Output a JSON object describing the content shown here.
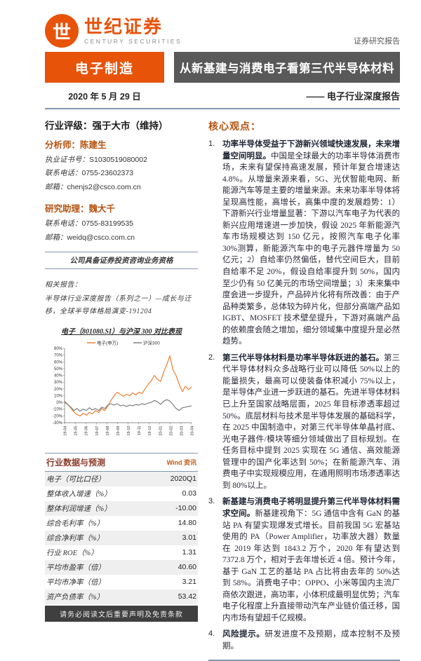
{
  "brand": {
    "logo_glyph": "世",
    "name": "世纪证券",
    "subname": "CENTURY SECURITIES",
    "report_type": "证券研究报告",
    "orange": "#E8530A",
    "dark": "#595959"
  },
  "header": {
    "category": "电子制造",
    "title": "从新基建与消费电子看第三代半导体材料",
    "date": "2020 年 5 月 29 日",
    "series": "—— 电子行业深度报告"
  },
  "sidebar": {
    "rating": "行业评级：强于大市（维持）",
    "analyst": {
      "role": "分析师：陈建生",
      "fields": [
        {
          "label": "执业证书号：",
          "value": "S1030519080002"
        },
        {
          "label": "联系电话：",
          "value": "0755-23602373"
        },
        {
          "label": "邮箱：",
          "value": "chenjs2@csco.com.cn"
        }
      ]
    },
    "assistant": {
      "role": "研究助理：魏大千",
      "fields": [
        {
          "label": "联系电话：",
          "value": "0755-83199535"
        },
        {
          "label": "邮箱：",
          "value": "weidq@csco.com.cn"
        }
      ]
    },
    "qualification": "公司具备证券投资咨询业务资格",
    "related_label": "相关报告：",
    "related_report": "半导体行业深度报告（系列之一）—成长与迁移，全球半导体格局演变-191204",
    "chart_title": "电子（801080.SI）与沪深 300 对比表现",
    "table": {
      "title": "行业数据与预测",
      "source": "Wind 资讯",
      "rows": [
        {
          "label": "电子（可比口径）",
          "value": "2020Q1"
        },
        {
          "label": "整体收入增速（%）",
          "value": "0.03"
        },
        {
          "label": "整体利润增速（%）",
          "value": "-10.00"
        },
        {
          "label": "综合毛利率（%）",
          "value": "14.80"
        },
        {
          "label": "综合净利率（%）",
          "value": "3.01"
        },
        {
          "label": "行业 ROE（%）",
          "value": "1.31"
        },
        {
          "label": "平均市盈率（倍）",
          "value": "40.60"
        },
        {
          "label": "平均市净率（倍）",
          "value": "3.21"
        },
        {
          "label": "资产负债率（%）",
          "value": "53.42"
        }
      ]
    },
    "disclaimer": "请务必阅读文后重要声明及免责条款"
  },
  "main": {
    "heading": "核心观点：",
    "points": [
      {
        "bold": "功率半导体受益于下游新兴领域快速发展，未来增量空间明显。",
        "text": "中国是全球最大的功率半导体消费市场，未来有望保持高速发展，预计年复合增速达 4.8%。从增量来源来看，5G、光伏智能电网、新能源汽车等是主要的增量来源。未来功率半导体将呈现高性能，高增长，高集中度的发展趋势：1）下游新兴行业增量显著：下游以汽车电子为代表的新兴应用增速进一步加快，假设 2025 年新能源汽车市场规模达到 150 亿元，按照汽车电子化率 30%测算，新能源汽车中的电子元器件增量为 50 亿元；2）自给率仍然偏低，替代空间巨大，目前自给率不足 20%，假设自给率提升到 50%，国内至少仍有 50 亿美元的市场空间增量；3）未来集中度会进一步提升，产品碎片化将有所改善：由于产品种类繁多，总体较为碎片化，但部分高端产品如 IGBT、MOSFET 技术壁垒提升，下游对高端产品的依赖度会随之增加，细分领域集中度提升是必然趋势。"
      },
      {
        "bold": "第三代半导体材料是功率半导体跃进的基石。",
        "text": "第三代半导体材料众多战略行业可以降低 50%以上的能量损失，最高可以使装备体积减小 75%以上，是半导体产业进一步跃进的基石。先进半导体材料已上升至国家战略层面，2025 年目标渗透率超过 50%。底层材料与技术是半导体发展的基础科学，在 2025 中国制造中，对第三代半导体单晶衬底、光电子器件/模块等细分领域做出了目标规划。在任务目标中提到 2025 实现在 5G 通信、高效能源管理中的国产化率达到 50%；在新能源汽车、消费电子中实现规模应用，在通用照明市场渗透率达到 80%以上。"
      },
      {
        "bold": "新基建与消费电子将明显提升第三代半导体材料需求空间。",
        "text": "新基建视角下：5G 通信中含有 GaN 的基站 PA 有望实现爆发式增长。目前我国 5G 宏基站使用的 PA（Power Amplifier，功率放大器）数量在 2019 年达到 1843.2 万个，2020 年有望达到 7372.8 万个，相对于去年增长近 4 倍。预计今年，基于 GaN 工艺的基站 PA 占比将由去年的 50%达到 58%。消费电子中：OPPO、小米等国内主流厂商依次跟进，高功率，小体积成最明显优势；汽车电子化程度上升直接带动汽车产业链价值迁移，国内市场有望超千亿规模。"
      },
      {
        "bold": "风险提示。",
        "text": "研发进度不及预期，成本控制不及预期。"
      }
    ]
  },
  "chart_data": {
    "type": "line",
    "title": "电子（801080.SI）与沪深 300 对比表现",
    "x_tick_labels": [
      "19-04",
      "19-05",
      "19-06",
      "19-07",
      "19-08",
      "19-09",
      "19-10",
      "19-11",
      "19-12",
      "20-01",
      "20-02",
      "20-03",
      "20-04"
    ],
    "series": [
      {
        "name": "电子(申万)",
        "color": "#ED7D31",
        "values": [
          2,
          -3,
          -8,
          -14,
          -18,
          -20,
          -16,
          -19,
          -15,
          -17,
          -12,
          -15,
          -9,
          -12,
          -5,
          3,
          10,
          15,
          12,
          9,
          12,
          10,
          14,
          11,
          15,
          13,
          20,
          27,
          32,
          40,
          34,
          31,
          45,
          56,
          69,
          48,
          40,
          27,
          16,
          24,
          19,
          23
        ]
      },
      {
        "name": "沪深300",
        "color": "#7F7F7F",
        "values": [
          0,
          -3,
          -7,
          -12,
          -9,
          -13,
          -10,
          -12,
          -8,
          -11,
          -9,
          -12,
          -7,
          -9,
          -4,
          -2,
          -4,
          -2,
          -5,
          -4,
          -6,
          -4,
          -5,
          -3,
          -4,
          -2,
          -3,
          -1,
          0,
          3,
          1,
          -3,
          2,
          4,
          2,
          -3,
          -9,
          -12,
          -8,
          -7,
          -6,
          -5
        ]
      }
    ],
    "ylim": [
      -30,
      80
    ],
    "y_tick_step": 10,
    "ylabel": "",
    "xlabel": "",
    "grid": false,
    "legend_position": "top"
  }
}
